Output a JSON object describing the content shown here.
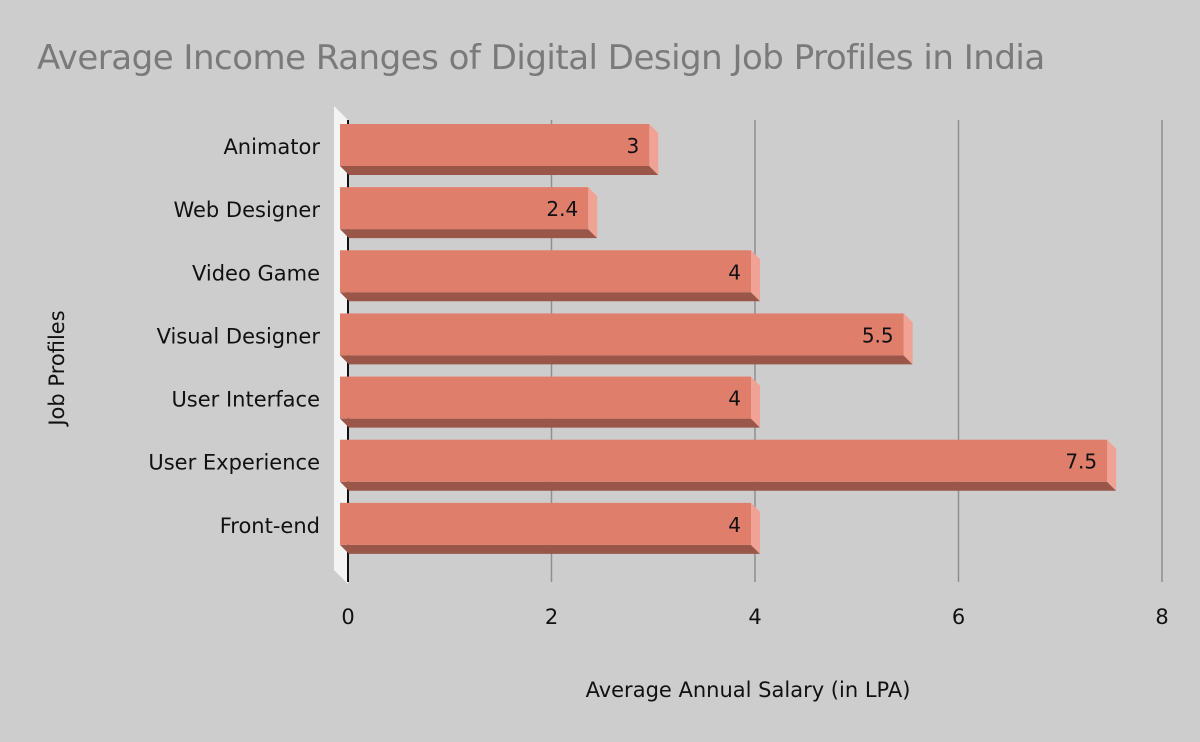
{
  "chart_data": {
    "type": "bar",
    "orientation": "horizontal",
    "title": "Average Income Ranges of Digital Design Job Profiles in India",
    "xlabel": "Average Annual Salary (in LPA)",
    "ylabel": "Job Profiles",
    "categories": [
      "Animator",
      "Web Designer",
      "Video Game",
      "Visual Designer",
      "User Interface",
      "User Experience",
      "Front-end"
    ],
    "values": [
      3,
      2.4,
      4,
      5.5,
      4,
      7.5,
      4
    ],
    "value_labels": [
      "3",
      "2.4",
      "4",
      "5.5",
      "4",
      "7.5",
      "4"
    ],
    "xlim": [
      0,
      8
    ],
    "xticks": [
      0,
      2,
      4,
      6,
      8
    ],
    "xtick_labels": [
      "0",
      "2",
      "4",
      "6",
      "8"
    ],
    "grid": true,
    "bar_color": "#e07e6c",
    "bar_side_color": "#f0a394",
    "bar_bottom_color": "#9a5648",
    "grid_color": "#8f8f8f",
    "background": "#cdcdcd"
  }
}
